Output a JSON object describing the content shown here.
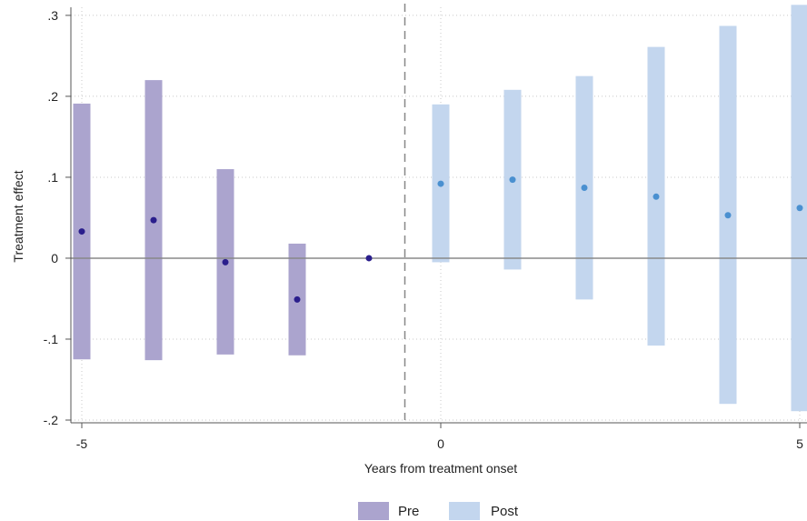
{
  "chart_data": {
    "type": "scatter",
    "title": "",
    "xlabel": "Years from treatment onset",
    "ylabel": "Treatment effect",
    "xlim": [
      -5,
      5
    ],
    "ylim": [
      -0.2,
      0.3
    ],
    "x_ticks": [
      -5,
      0,
      5
    ],
    "x_tick_labels": [
      "-5",
      "0",
      "5"
    ],
    "y_ticks": [
      -0.2,
      -0.1,
      0,
      0.1,
      0.2,
      0.3
    ],
    "y_tick_labels": [
      "-.2",
      "-.1",
      "0",
      ".1",
      ".2",
      ".3"
    ],
    "grid": true,
    "zero_reference_line": 0,
    "treatment_reference_line_x": -0.5,
    "legend_position": "bottom-center",
    "series": [
      {
        "name": "Pre",
        "color": "#ABA4CE",
        "point_color": "#2A1E8C",
        "points": [
          {
            "x": -5,
            "estimate": 0.033,
            "ci_low": -0.125,
            "ci_high": 0.191
          },
          {
            "x": -4,
            "estimate": 0.047,
            "ci_low": -0.126,
            "ci_high": 0.22
          },
          {
            "x": -3,
            "estimate": -0.005,
            "ci_low": -0.119,
            "ci_high": 0.11
          },
          {
            "x": -2,
            "estimate": -0.051,
            "ci_low": -0.12,
            "ci_high": 0.018
          },
          {
            "x": -1,
            "estimate": 0.0
          }
        ]
      },
      {
        "name": "Post",
        "color": "#C3D6EE",
        "point_color": "#4A90D0",
        "points": [
          {
            "x": 0,
            "estimate": 0.092,
            "ci_low": -0.005,
            "ci_high": 0.19
          },
          {
            "x": 1,
            "estimate": 0.097,
            "ci_low": -0.014,
            "ci_high": 0.208
          },
          {
            "x": 2,
            "estimate": 0.087,
            "ci_low": -0.051,
            "ci_high": 0.225
          },
          {
            "x": 3,
            "estimate": 0.076,
            "ci_low": -0.108,
            "ci_high": 0.261
          },
          {
            "x": 4,
            "estimate": 0.053,
            "ci_low": -0.18,
            "ci_high": 0.287
          },
          {
            "x": 5,
            "estimate": 0.062,
            "ci_low": -0.189,
            "ci_high": 0.313
          }
        ]
      }
    ]
  },
  "colors": {
    "grid": "#C8C8C8",
    "reference_line": "#888888",
    "axis": "#555555"
  }
}
